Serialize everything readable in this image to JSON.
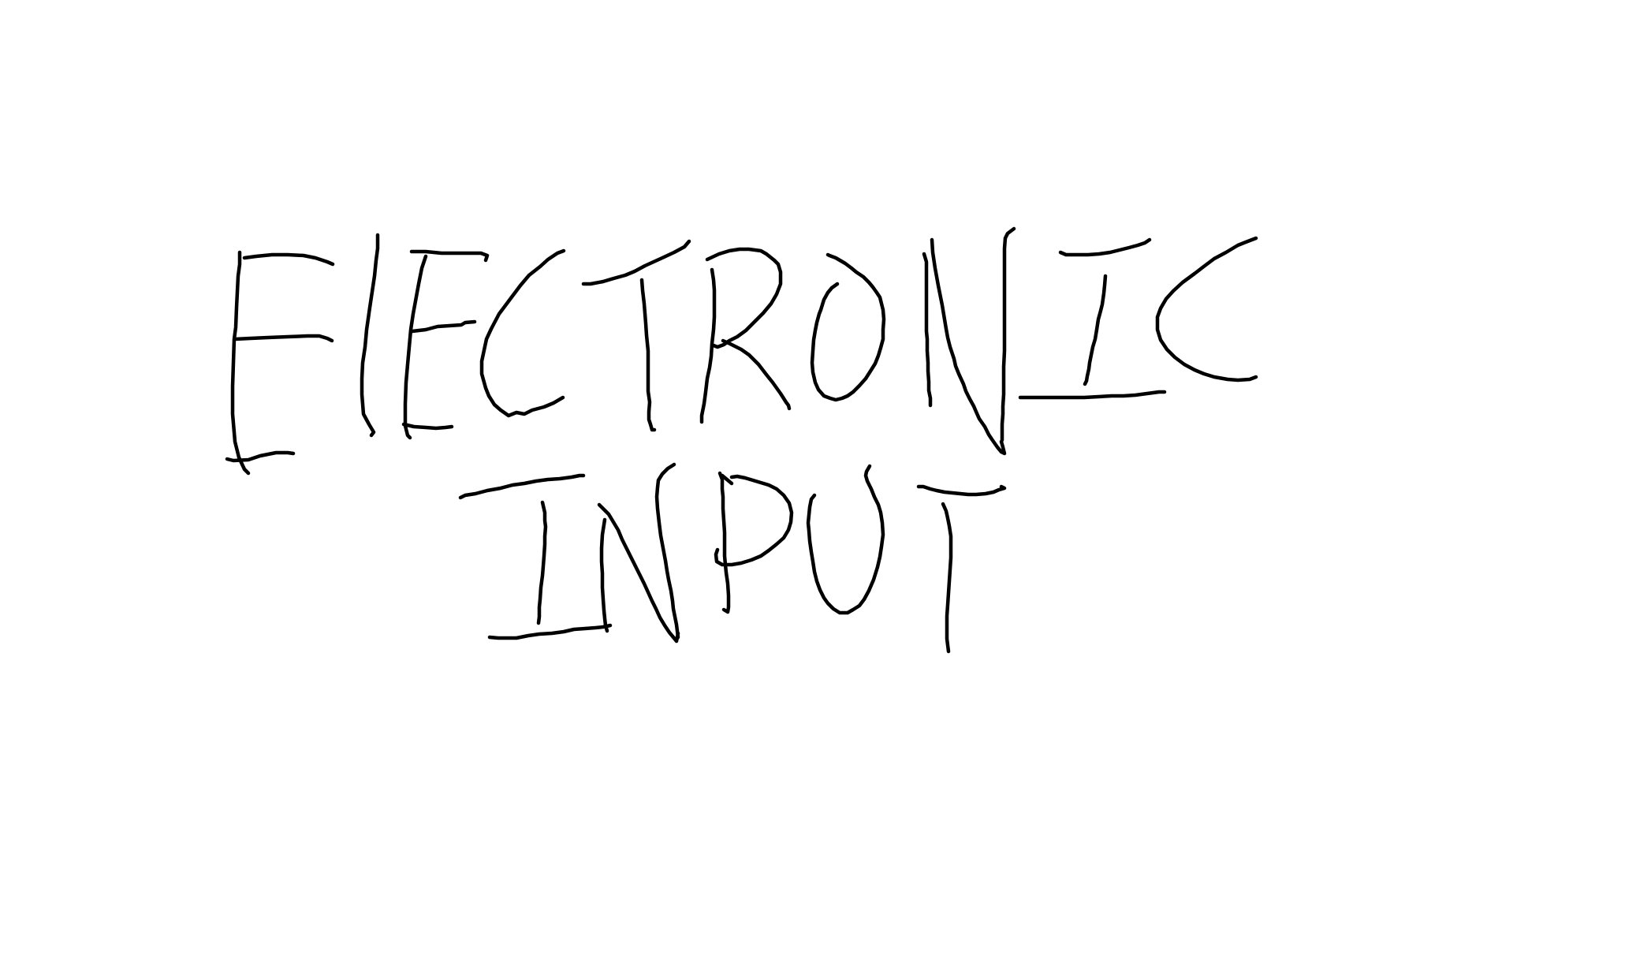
{
  "sketch": {
    "line_1": "ElECTRONIC",
    "line_2": "INPUT",
    "ink_color": "#000000",
    "background_color": "#ffffff"
  }
}
